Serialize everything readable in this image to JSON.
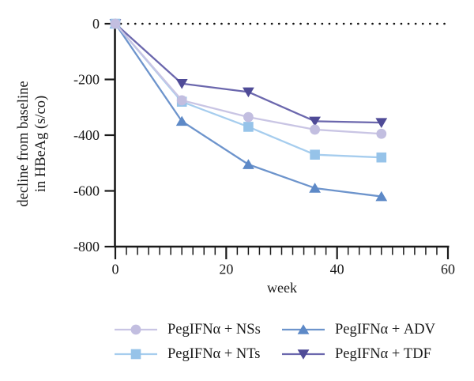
{
  "figure": {
    "background": "#ffffff",
    "text_color": "#1a1a1a",
    "axis_color": "#1a1a1a"
  },
  "chart_data": {
    "type": "line",
    "title": "",
    "xlabel": "week",
    "ylabel_lines": [
      "decline from baseline",
      "in HBeAg (s/co)"
    ],
    "x": [
      0,
      12,
      24,
      36,
      48
    ],
    "xlim": [
      0,
      60
    ],
    "ylim": [
      -800,
      0
    ],
    "xticks": [
      0,
      20,
      40,
      60
    ],
    "xtick_minor_step": 2,
    "yticks": [
      0,
      -200,
      -400,
      -600,
      -800
    ],
    "grid": "off",
    "zero_reference_line": {
      "y": 0,
      "style": "dotted",
      "color": "#111111"
    },
    "series": [
      {
        "name": "PegIFNα + NSs",
        "marker": "circle",
        "color": "#c2bee0",
        "line_color": "#c9c5e4",
        "values": [
          0,
          -275,
          -335,
          -380,
          -395
        ]
      },
      {
        "name": "PegIFNα + NTs",
        "marker": "square",
        "color": "#96c3e9",
        "line_color": "#a6cdee",
        "values": [
          0,
          -280,
          -370,
          -470,
          -480
        ]
      },
      {
        "name": "PegIFNα + ADV",
        "marker": "triangle-up",
        "color": "#5d89c7",
        "line_color": "#6d94cc",
        "values": [
          0,
          -350,
          -505,
          -590,
          -620
        ]
      },
      {
        "name": "PegIFNα + TDF",
        "marker": "triangle-down",
        "color": "#4f4b97",
        "line_color": "#6b67ad",
        "values": [
          0,
          -215,
          -245,
          -350,
          -355
        ]
      }
    ],
    "legend": {
      "position": "bottom",
      "rows": 2,
      "columns": 2
    }
  }
}
